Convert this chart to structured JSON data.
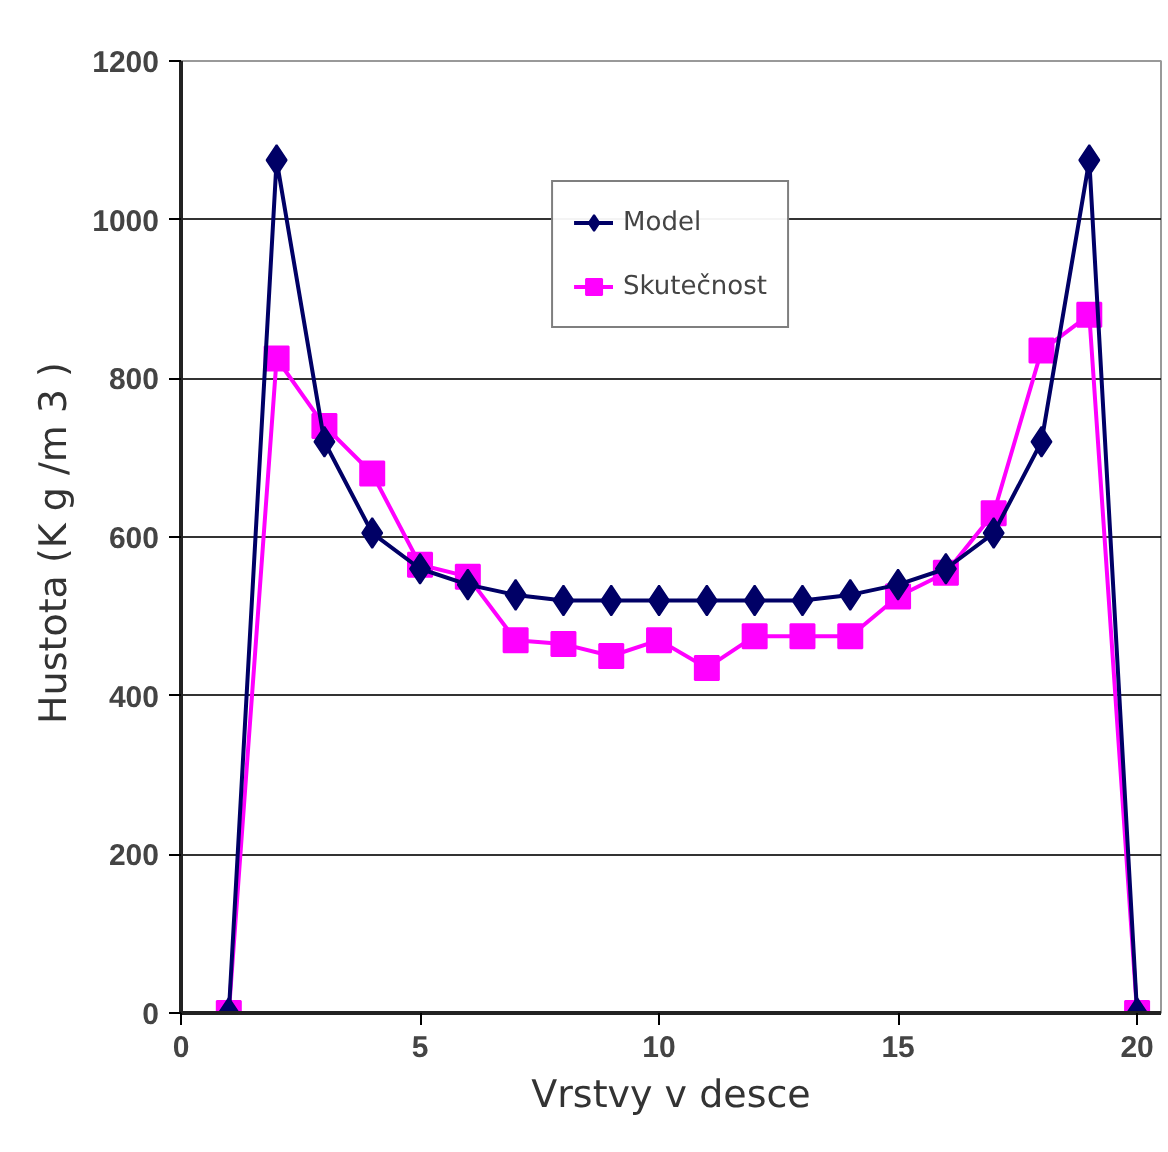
{
  "chart_data": {
    "type": "line",
    "xlabel": "Vrstvy v desce",
    "ylabel": "Hustota  (K g /m 3 )",
    "x": [
      1,
      2,
      3,
      4,
      5,
      6,
      7,
      8,
      9,
      10,
      11,
      12,
      13,
      14,
      15,
      16,
      17,
      18,
      19,
      20
    ],
    "series": [
      {
        "name": "Model",
        "color": "#000066",
        "marker": "diamond",
        "values": [
          0,
          1075,
          720,
          605,
          560,
          540,
          527,
          520,
          520,
          520,
          520,
          520,
          520,
          527,
          540,
          560,
          605,
          720,
          1075,
          0
        ]
      },
      {
        "name": "Skutečnost",
        "color": "#ff00ff",
        "marker": "square",
        "values": [
          0,
          825,
          740,
          680,
          565,
          550,
          470,
          465,
          450,
          470,
          435,
          475,
          475,
          475,
          525,
          555,
          630,
          835,
          880,
          0
        ]
      }
    ],
    "xlim": [
      0,
      20.5
    ],
    "xticks": [
      0,
      5,
      10,
      15,
      20
    ],
    "ylim": [
      0,
      1200
    ],
    "yticks": [
      0,
      200,
      400,
      600,
      800,
      1000,
      1200
    ],
    "grid": "y",
    "legend": "top",
    "line_style": "solid"
  }
}
